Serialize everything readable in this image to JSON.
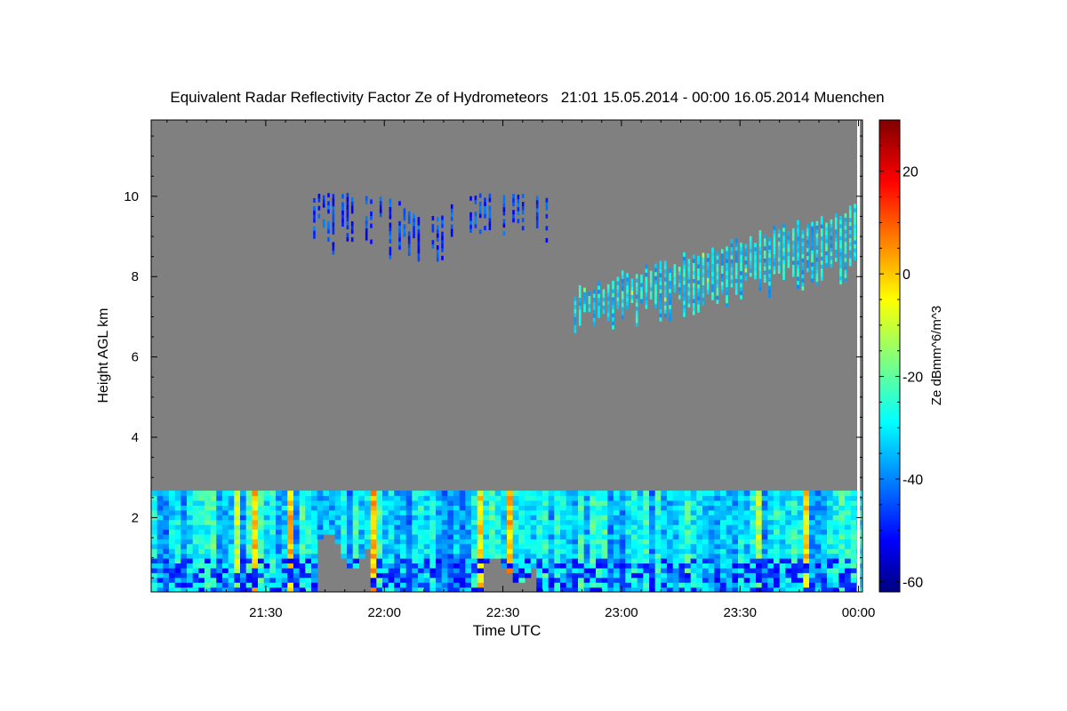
{
  "chart_data": {
    "type": "heatmap",
    "title": "Equivalent Radar Reflectivity Factor Ze of Hydrometeors   21:01 15.05.2014 - 00:00 16.05.2014 Muenchen",
    "xlabel": "Time UTC",
    "ylabel": "Height AGL km",
    "colorbar_label": "Ze dBmm^6/m^3",
    "xlim": [
      "21:01",
      "00:01"
    ],
    "ylim": [
      0.15,
      11.9
    ],
    "x_ticks": [
      "21:30",
      "22:00",
      "22:30",
      "23:00",
      "23:30",
      "00:00"
    ],
    "y_ticks": [
      "2",
      "4",
      "6",
      "8",
      "10"
    ],
    "colorbar_ticks": [
      "20",
      "0",
      "-20",
      "-40",
      "-60"
    ],
    "colorbar_range": [
      -62,
      30
    ],
    "colormap": "jet",
    "background_color": "#808080",
    "low_cloud_layer": {
      "base_km": 0.15,
      "top_km": 2.6,
      "time_range": [
        "21:01",
        "00:00"
      ],
      "typical_ze": -30,
      "peak_ze": 8,
      "dry_gaps": [
        {
          "start": "21:42",
          "end": "21:55",
          "below_km": 1.6
        },
        {
          "start": "22:24",
          "end": "22:37",
          "below_km": 0.9
        }
      ]
    },
    "upper_clouds": [
      {
        "start": "21:42",
        "end": "22:42",
        "base_km": 8.3,
        "top_km": 10.1,
        "typical_ze": -45
      },
      {
        "start": "22:48",
        "end": "00:00",
        "base_km_start": 7.1,
        "base_km_end": 8.6,
        "top_km_start": 7.6,
        "top_km_end": 9.7,
        "typical_ze": -30
      }
    ]
  }
}
